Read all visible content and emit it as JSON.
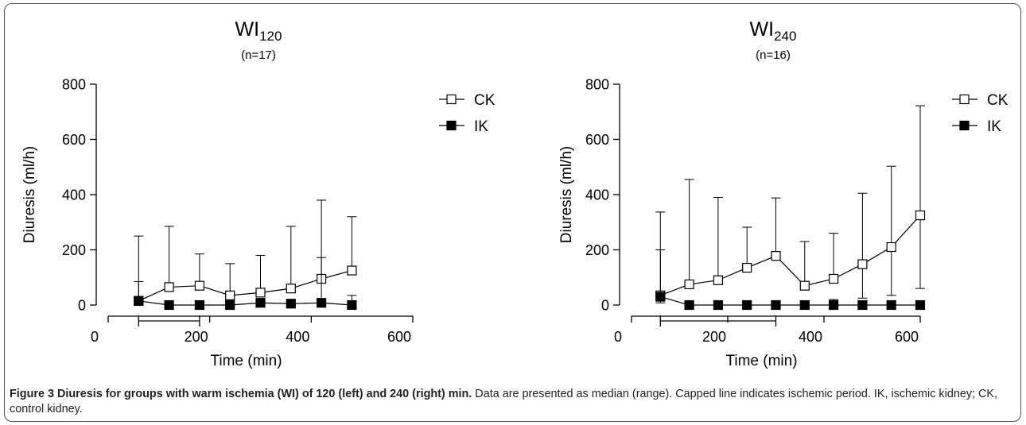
{
  "caption": {
    "label": "Figure 3 Diuresis for groups with warm ischemia (WI) of 120 (left) and 240 (right) min.",
    "text": " Data are presented as median (range). Capped line indicates ischemic period. IK, ischemic kidney; CK, control kidney."
  },
  "colors": {
    "axis": "#000000",
    "ck_fill": "#ffffff",
    "ik_fill": "#000000",
    "frame": "#555555"
  },
  "chart_data": [
    {
      "type": "line",
      "title_main": "WI",
      "title_sub": "120",
      "subtitle": "(n=17)",
      "xlabel": "Time (min)",
      "ylabel": "Diuresis (ml/h)",
      "xlim": [
        0,
        600
      ],
      "ylim": [
        0,
        800
      ],
      "xticks": [
        0,
        200,
        400,
        600
      ],
      "yticks": [
        0,
        200,
        400,
        600,
        800
      ],
      "grid": false,
      "legend_position": "top-right",
      "ischemic_period": [
        60,
        180
      ],
      "series": [
        {
          "name": "CK",
          "marker": "open-square",
          "x": [
            60,
            120,
            180,
            240,
            300,
            360,
            420,
            480
          ],
          "values": [
            15,
            65,
            70,
            35,
            45,
            60,
            95,
            125
          ],
          "upper": [
            250,
            285,
            185,
            150,
            180,
            285,
            380,
            320
          ]
        },
        {
          "name": "IK",
          "marker": "filled-square",
          "x": [
            60,
            120,
            180,
            240,
            300,
            360,
            420,
            480
          ],
          "values": [
            15,
            0,
            0,
            0,
            8,
            5,
            8,
            0
          ],
          "upper": [
            85,
            0,
            0,
            0,
            10,
            8,
            172,
            35
          ]
        }
      ]
    },
    {
      "type": "line",
      "title_main": "WI",
      "title_sub": "240",
      "subtitle": "(n=16)",
      "xlabel": "Time (min)",
      "ylabel": "Diuresis (ml/h)",
      "xlim": [
        0,
        600
      ],
      "ylim": [
        0,
        800
      ],
      "xticks": [
        0,
        200,
        400,
        600
      ],
      "yticks": [
        0,
        200,
        400,
        600,
        800
      ],
      "grid": false,
      "legend_position": "top-right",
      "ischemic_period": [
        60,
        300
      ],
      "series": [
        {
          "name": "CK",
          "marker": "open-square",
          "x": [
            60,
            120,
            180,
            240,
            300,
            360,
            420,
            480,
            540,
            600
          ],
          "values": [
            35,
            75,
            90,
            135,
            178,
            70,
            95,
            148,
            210,
            325
          ],
          "upper": [
            337,
            455,
            390,
            282,
            388,
            230,
            260,
            405,
            503,
            722
          ],
          "lower": [
            8,
            null,
            null,
            null,
            null,
            null,
            null,
            25,
            35,
            60
          ]
        },
        {
          "name": "IK",
          "marker": "filled-square",
          "x": [
            60,
            120,
            180,
            240,
            300,
            360,
            420,
            480,
            540,
            600
          ],
          "values": [
            30,
            0,
            0,
            0,
            0,
            0,
            0,
            0,
            0,
            0
          ],
          "upper": [
            200,
            0,
            0,
            0,
            0,
            15,
            20,
            0,
            0,
            0
          ]
        }
      ]
    }
  ]
}
